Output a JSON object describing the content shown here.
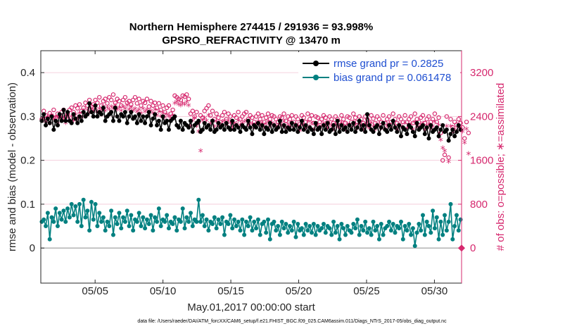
{
  "chart_data": {
    "type": "line",
    "title_line1": "Northern Hemisphere 274415 / 291936 = 93.998%",
    "title_line2": "GPSRO_REFRACTIVITY @ 13470 m",
    "xlabel": "May.01,2017 00:00:00 start",
    "ylabel": "rmse and bias (model - observation)",
    "ylabel_right": "# of obs: o=possible; ∗=assimilated",
    "footnote": "data file: /Users/raeder/DAI/ATM_forcXX/CAM6_setup/f.e21.FHIST_BGC.f09_025.CAM6assim.011/Diags_NTrS_2017-05/obs_diag_output.nc",
    "x_range": [
      1,
      32
    ],
    "x_ticks": [
      5,
      10,
      15,
      20,
      25,
      30
    ],
    "x_tick_labels": [
      "05/05",
      "05/10",
      "05/15",
      "05/20",
      "05/25",
      "05/30"
    ],
    "ylim": [
      -0.08,
      0.45
    ],
    "y_ticks": [
      0,
      0.1,
      0.2,
      0.3,
      0.4
    ],
    "y_tick_labels": [
      "0",
      "0.1",
      "0.2",
      "0.3",
      "0.4"
    ],
    "ylim_right": [
      -640,
      3600
    ],
    "y_ticks_right": [
      0,
      800,
      1600,
      2400,
      3200
    ],
    "y_tick_labels_right": [
      "0",
      "800",
      "1600",
      "2400",
      "3200"
    ],
    "colors": {
      "rmse": "#000000",
      "bias": "#008080",
      "obs": "#d6286e",
      "grid": "#f2c4d4",
      "zero": "#b3b3b3"
    },
    "legend": [
      {
        "name": "rmse grand pr = 0.2825",
        "series": "rmse"
      },
      {
        "name": "bias grand pr = 0.061478",
        "series": "bias"
      }
    ],
    "series": [
      {
        "name": "rmse",
        "values": [
          0.29,
          0.305,
          0.28,
          0.295,
          0.285,
          0.3,
          0.27,
          0.29,
          0.28,
          0.305,
          0.29,
          0.315,
          0.29,
          0.31,
          0.29,
          0.285,
          0.305,
          0.295,
          0.285,
          0.3,
          0.29,
          0.31,
          0.3,
          0.305,
          0.33,
          0.31,
          0.3,
          0.325,
          0.3,
          0.31,
          0.305,
          0.32,
          0.29,
          0.3,
          0.305,
          0.31,
          0.29,
          0.32,
          0.3,
          0.29,
          0.305,
          0.3,
          0.31,
          0.285,
          0.3,
          0.31,
          0.295,
          0.3,
          0.285,
          0.305,
          0.29,
          0.3,
          0.285,
          0.3,
          0.31,
          0.28,
          0.295,
          0.305,
          0.28,
          0.29,
          0.27,
          0.3,
          0.285,
          0.29,
          0.27,
          0.29,
          0.295,
          0.3,
          0.28,
          0.275,
          0.29,
          0.27,
          0.285,
          0.28,
          0.275,
          0.29,
          0.265,
          0.28,
          0.285,
          0.29,
          0.265,
          0.27,
          0.285,
          0.275,
          0.28,
          0.27,
          0.29,
          0.265,
          0.27,
          0.285,
          0.275,
          0.28,
          0.27,
          0.285,
          0.275,
          0.27,
          0.29,
          0.27,
          0.28,
          0.275,
          0.265,
          0.28,
          0.275,
          0.27,
          0.29,
          0.275,
          0.26,
          0.28,
          0.275,
          0.285,
          0.27,
          0.28,
          0.26,
          0.275,
          0.27,
          0.285,
          0.265,
          0.28,
          0.27,
          0.275,
          0.29,
          0.265,
          0.28,
          0.265,
          0.275,
          0.27,
          0.285,
          0.27,
          0.28,
          0.265,
          0.275,
          0.29,
          0.27,
          0.28,
          0.265,
          0.275,
          0.27,
          0.26,
          0.285,
          0.27,
          0.275,
          0.26,
          0.28,
          0.27,
          0.285,
          0.265,
          0.27,
          0.28,
          0.26,
          0.29,
          0.265,
          0.28,
          0.27,
          0.275,
          0.265,
          0.28,
          0.27,
          0.285,
          0.265,
          0.275,
          0.29,
          0.27,
          0.28,
          0.265,
          0.305,
          0.28,
          0.27,
          0.265,
          0.275,
          0.28,
          0.26,
          0.275,
          0.285,
          0.27,
          0.265,
          0.28,
          0.27,
          0.29,
          0.275,
          0.265,
          0.28,
          0.255,
          0.275,
          0.27,
          0.26,
          0.28,
          0.275,
          0.265,
          0.255,
          0.285,
          0.27,
          0.275,
          0.28,
          0.26,
          0.275,
          0.25,
          0.28,
          0.265,
          0.27,
          0.275,
          0.255,
          0.27,
          0.28,
          0.265,
          0.27,
          0.245,
          0.26,
          0.27,
          0.255,
          0.265,
          0.28,
          0.27
        ]
      },
      {
        "name": "bias",
        "values": [
          0.06,
          0.065,
          0.05,
          0.08,
          0.02,
          0.07,
          0.06,
          0.09,
          0.05,
          0.08,
          0.065,
          0.085,
          0.06,
          0.09,
          0.07,
          0.1,
          0.075,
          0.095,
          0.06,
          0.1,
          0.05,
          0.11,
          0.07,
          0.085,
          0.04,
          0.105,
          0.065,
          0.1,
          0.05,
          0.08,
          0.06,
          0.07,
          0.04,
          0.06,
          0.05,
          0.085,
          0.03,
          0.07,
          0.055,
          0.08,
          0.045,
          0.07,
          0.06,
          0.085,
          0.05,
          0.075,
          0.04,
          0.065,
          0.06,
          0.08,
          0.05,
          0.07,
          0.045,
          0.065,
          0.055,
          0.075,
          0.04,
          0.07,
          0.06,
          0.09,
          0.05,
          0.065,
          0.06,
          0.075,
          0.045,
          0.06,
          0.055,
          0.07,
          0.04,
          0.065,
          0.06,
          0.09,
          0.045,
          0.07,
          0.06,
          0.08,
          0.05,
          0.065,
          0.06,
          0.11,
          0.06,
          0.075,
          0.05,
          0.065,
          0.04,
          0.06,
          0.055,
          0.07,
          0.045,
          0.065,
          0.055,
          0.07,
          0.03,
          0.06,
          0.055,
          0.075,
          0.045,
          0.065,
          0.05,
          0.06,
          0.04,
          0.065,
          0.03,
          0.06,
          0.05,
          0.07,
          0.04,
          0.06,
          0.045,
          0.065,
          0.03,
          0.055,
          0.06,
          0.035,
          0.065,
          0.02,
          0.055,
          0.06,
          0.04,
          0.05,
          0.03,
          0.06,
          0.045,
          0.055,
          0.035,
          0.05,
          0.04,
          0.06,
          0.025,
          0.055,
          0.04,
          0.045,
          0.03,
          0.055,
          0.04,
          0.05,
          0.035,
          0.055,
          0.03,
          0.05,
          0.04,
          0.045,
          0.055,
          0.035,
          0.05,
          0.045,
          0.03,
          0.06,
          0.035,
          0.05,
          0.02,
          0.055,
          0.045,
          0.03,
          0.05,
          0.04,
          0.035,
          0.055,
          0.045,
          0.065,
          0.03,
          0.05,
          0.04,
          0.06,
          0.035,
          0.045,
          0.03,
          0.06,
          0.04,
          0.05,
          0.02,
          0.055,
          0.03,
          0.045,
          0.05,
          0.06,
          0.04,
          0.055,
          0.035,
          0.05,
          0.045,
          0.06,
          0.02,
          0.05,
          0.04,
          0.055,
          0.03,
          0.045,
          0.005,
          0.035,
          0.055,
          0.04,
          0.075,
          0.03,
          0.06,
          0.05,
          0.035,
          0.085,
          0.045,
          0.07,
          0.02,
          0.06,
          0.03,
          0.075,
          0.04,
          0.06,
          0.1,
          0.02,
          0.05,
          0.075,
          0.04,
          0.065
        ]
      },
      {
        "name": "possible",
        "values": [
          2350,
          2500,
          2420,
          2380,
          2460,
          2410,
          2520,
          2380,
          2450,
          2400,
          2480,
          2520,
          2390,
          2450,
          2520,
          2560,
          2480,
          2600,
          2550,
          2620,
          2500,
          2560,
          2650,
          2600,
          2700,
          2580,
          2620,
          2700,
          2650,
          2750,
          2600,
          2680,
          2720,
          2640,
          2750,
          2700,
          2800,
          2650,
          2720,
          2680,
          2600,
          2700,
          2750,
          2650,
          2680,
          2620,
          2700,
          2750,
          2640,
          2720,
          2600,
          2680,
          2650,
          2720,
          2580,
          2680,
          2600,
          2650,
          2560,
          2640,
          2520,
          2600,
          2480,
          2560,
          2600,
          2450,
          2520,
          2780,
          2750,
          2720,
          2700,
          2780,
          2760,
          2800,
          2720,
          2450,
          2500,
          2400,
          2480,
          2300,
          2420,
          2380,
          2500,
          2550,
          2600,
          2420,
          2500,
          2350,
          2450,
          2380,
          2300,
          2420,
          2480,
          2350,
          2450,
          2400,
          2300,
          2420,
          2380,
          2480,
          2350,
          2400,
          2450,
          2480,
          2350,
          2420,
          2380,
          2300,
          2400,
          2450,
          2350,
          2420,
          2300,
          2380,
          2450,
          2350,
          2420,
          2400,
          2350,
          2300,
          2400,
          2380,
          2450,
          2320,
          2400,
          2350,
          2420,
          2300,
          2400,
          2350,
          2260,
          2420,
          2380,
          2300,
          2450,
          2350,
          2420,
          2280,
          2400,
          2380,
          2300,
          2350,
          2420,
          2380,
          2300,
          2400,
          2350,
          2280,
          2400,
          2350,
          2300,
          2420,
          2350,
          2280,
          2400,
          2380,
          2300,
          2450,
          2380,
          2300,
          2400,
          2350,
          2280,
          2400,
          2350,
          2300,
          2420,
          2360,
          2280,
          2400,
          2350,
          2300,
          2420,
          2280,
          2350,
          2400,
          2300,
          2450,
          2350,
          2280,
          2400,
          2350,
          2300,
          2420,
          2300,
          2350,
          2400,
          2280,
          2450,
          2350,
          2300,
          2380,
          2420,
          2280,
          2350,
          2400,
          2300,
          2350,
          2450,
          2300,
          2380,
          2100,
          1600,
          1700,
          2400,
          1650,
          2350,
          2200,
          2300,
          2250,
          2350,
          2280,
          2200,
          2000,
          2300,
          2100
        ]
      },
      {
        "name": "assimilated",
        "values": [
          2300,
          2380,
          2280,
          2340,
          2250,
          2400,
          2320,
          2360,
          2240,
          2380,
          2300,
          2350,
          2260,
          2400,
          2320,
          2380,
          2300,
          2420,
          2340,
          2440,
          2360,
          2480,
          2400,
          2500,
          2450,
          2520,
          2480,
          2540,
          2460,
          2520,
          2500,
          2560,
          2480,
          2540,
          2500,
          2560,
          2520,
          2580,
          2500,
          2540,
          2480,
          2560,
          2520,
          2580,
          2500,
          2540,
          2480,
          2520,
          2460,
          2500,
          2440,
          2520,
          2460,
          2500,
          2420,
          2480,
          2440,
          2500,
          2400,
          2460,
          2380,
          2440,
          2360,
          2420,
          2380,
          2340,
          2400,
          2620,
          2640,
          2600,
          2580,
          2620,
          2600,
          2640,
          2580,
          2200,
          2300,
          2350,
          2200,
          2100,
          1750,
          2300,
          2350,
          2300,
          2400,
          2250,
          2300,
          2200,
          2280,
          2220,
          2180,
          2280,
          2300,
          2240,
          2300,
          2260,
          2180,
          2260,
          2240,
          2300,
          2220,
          2260,
          2280,
          2300,
          2220,
          2260,
          2240,
          2180,
          2240,
          2280,
          2220,
          2260,
          2180,
          2240,
          2280,
          2200,
          2260,
          2240,
          2200,
          2160,
          2240,
          2220,
          2280,
          2180,
          2240,
          2200,
          2260,
          2160,
          2240,
          2200,
          2120,
          2260,
          2220,
          2160,
          2280,
          2200,
          2260,
          2140,
          2240,
          2220,
          2160,
          2200,
          2260,
          2220,
          2160,
          2240,
          2200,
          2140,
          2240,
          2200,
          2160,
          2260,
          2200,
          2140,
          2240,
          2220,
          2160,
          2280,
          2220,
          2160,
          2240,
          2200,
          2140,
          2240,
          2200,
          2160,
          2260,
          2200,
          2140,
          2240,
          2200,
          2160,
          2260,
          2140,
          2200,
          2240,
          2160,
          2280,
          2200,
          2140,
          2240,
          2200,
          2160,
          2260,
          2160,
          2200,
          2240,
          2140,
          2280,
          2200,
          2160,
          2220,
          2260,
          2140,
          2200,
          2240,
          2160,
          2200,
          2280,
          2160,
          2220,
          1950,
          1800,
          1750,
          2200,
          1550,
          2200,
          2100,
          2150,
          2100,
          2200,
          2150,
          2100,
          1900,
          2150,
          1700
        ]
      }
    ]
  }
}
